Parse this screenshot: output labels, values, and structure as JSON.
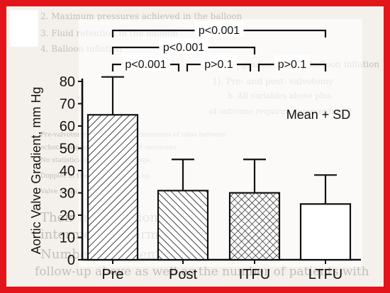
{
  "chart_data": {
    "type": "bar",
    "categories": [
      "Pre",
      "Post",
      "ITFU",
      "LTFU"
    ],
    "values": [
      65,
      31,
      30,
      25
    ],
    "errors": [
      17,
      14,
      15,
      13
    ],
    "patterns": [
      "diagonal-right",
      "diagonal-left",
      "crosshatch",
      "none"
    ],
    "ylabel": "Aortic Valve Gradient, mm Hg",
    "ylim": [
      0,
      80
    ],
    "yticks": [
      0,
      10,
      20,
      30,
      40,
      50,
      60,
      70,
      80
    ],
    "legend_text": "Mean + SD",
    "grid": false,
    "annotations": [
      {
        "from": 0,
        "to": 3,
        "text": "p<0.001"
      },
      {
        "from": 0,
        "to": 2,
        "text": "p<0.001"
      },
      {
        "from": 0,
        "to": 1,
        "text": "p<0.001"
      },
      {
        "from": 1,
        "to": 2,
        "text": "p>0.1"
      },
      {
        "from": 2,
        "to": 3,
        "text": "p>0.1"
      }
    ]
  },
  "background_text": [
    "2.  Maximum pressures achieved in the balloon",
    "3.  Fluid retention in the balloon",
    "4.  Balloon inflation",
    "Ao valve gradient as the balloon inflation",
    "1).  Pre- and post- valvotomy",
    "  b.  All variables above plus",
    "  of outcome requiring intervention",
    "Pre-valvotomy and follow-up dimensions of ratio between",
    "echocardiographic and Doppler measures",
    "No statistically significant change",
    "Doppler in the period of follow-up",
    "Valve areas",
    "Their intervention",
    "intermediate term",
    "Number of patients",
    "follow-up above as well as the number of patients with"
  ],
  "colors": {
    "frame": "#e4141b",
    "paper": "#f4f1ec",
    "ink": "#111111"
  }
}
